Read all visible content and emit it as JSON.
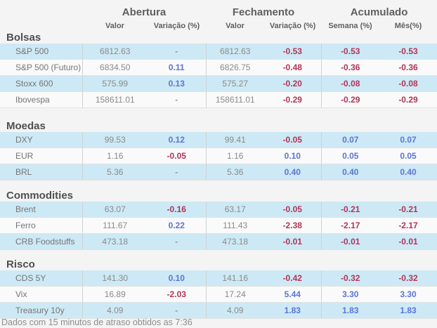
{
  "colors": {
    "background": "#f4f4f4",
    "row_blue": "#cde9f5",
    "positive": "#5b75d6",
    "negative": "#b23558"
  },
  "header": {
    "groups": [
      {
        "label": "Abertura",
        "sub": [
          "Valor",
          "Variação (%)"
        ]
      },
      {
        "label": "Fechamento",
        "sub": [
          "Valor",
          "Variação (%)"
        ]
      },
      {
        "label": "Acumulado",
        "sub": [
          "Semana (%)",
          "Mês(%)"
        ]
      }
    ]
  },
  "sections": [
    {
      "title": "Bolsas",
      "rows": [
        {
          "label": "S&P 500",
          "cells": [
            "6812.63",
            "-",
            "6812.63",
            "-0.53",
            "-0.53",
            "-0.53"
          ]
        },
        {
          "label": "S&P 500 (Futuro)",
          "cells": [
            "6834.50",
            "0.11",
            "6826.75",
            "-0.48",
            "-0.36",
            "-0.36"
          ]
        },
        {
          "label": "Stoxx 600",
          "cells": [
            "575.99",
            "0.13",
            "575.27",
            "-0.20",
            "-0.08",
            "-0.08"
          ]
        },
        {
          "label": "Ibovespa",
          "cells": [
            "158611.01",
            "-",
            "158611.01",
            "-0.29",
            "-0.29",
            "-0.29"
          ]
        }
      ]
    },
    {
      "title": "Moedas",
      "rows": [
        {
          "label": "DXY",
          "cells": [
            "99.53",
            "0.12",
            "99.41",
            "-0.05",
            "0.07",
            "0.07"
          ]
        },
        {
          "label": "EUR",
          "cells": [
            "1.16",
            "-0.05",
            "1.16",
            "0.10",
            "0.05",
            "0.05"
          ]
        },
        {
          "label": "BRL",
          "cells": [
            "5.36",
            "-",
            "5.36",
            "0.40",
            "0.40",
            "0.40"
          ]
        }
      ]
    },
    {
      "title": "Commodities",
      "rows": [
        {
          "label": "Brent",
          "cells": [
            "63.07",
            "-0.16",
            "63.17",
            "-0.05",
            "-0.21",
            "-0.21"
          ]
        },
        {
          "label": "Ferro",
          "cells": [
            "111.67",
            "0.22",
            "111.43",
            "-2.38",
            "-2.17",
            "-2.17"
          ]
        },
        {
          "label": "CRB Foodstuffs",
          "cells": [
            "473.18",
            "-",
            "473.18",
            "-0.01",
            "-0.01",
            "-0.01"
          ]
        }
      ]
    },
    {
      "title": "Risco",
      "rows": [
        {
          "label": "CDS 5Y",
          "cells": [
            "141.30",
            "0.10",
            "141.16",
            "-0.42",
            "-0.32",
            "-0.32"
          ]
        },
        {
          "label": "Vix",
          "cells": [
            "16.89",
            "-2.03",
            "17.24",
            "5.44",
            "3.30",
            "3.30"
          ]
        },
        {
          "label": "Treasury 10y",
          "cells": [
            "4.09",
            "-",
            "4.09",
            "1.83",
            "1.83",
            "1.83"
          ]
        }
      ]
    }
  ],
  "footer": {
    "text": "Dados com 15 minutos de atraso obtidos as 7:36"
  }
}
